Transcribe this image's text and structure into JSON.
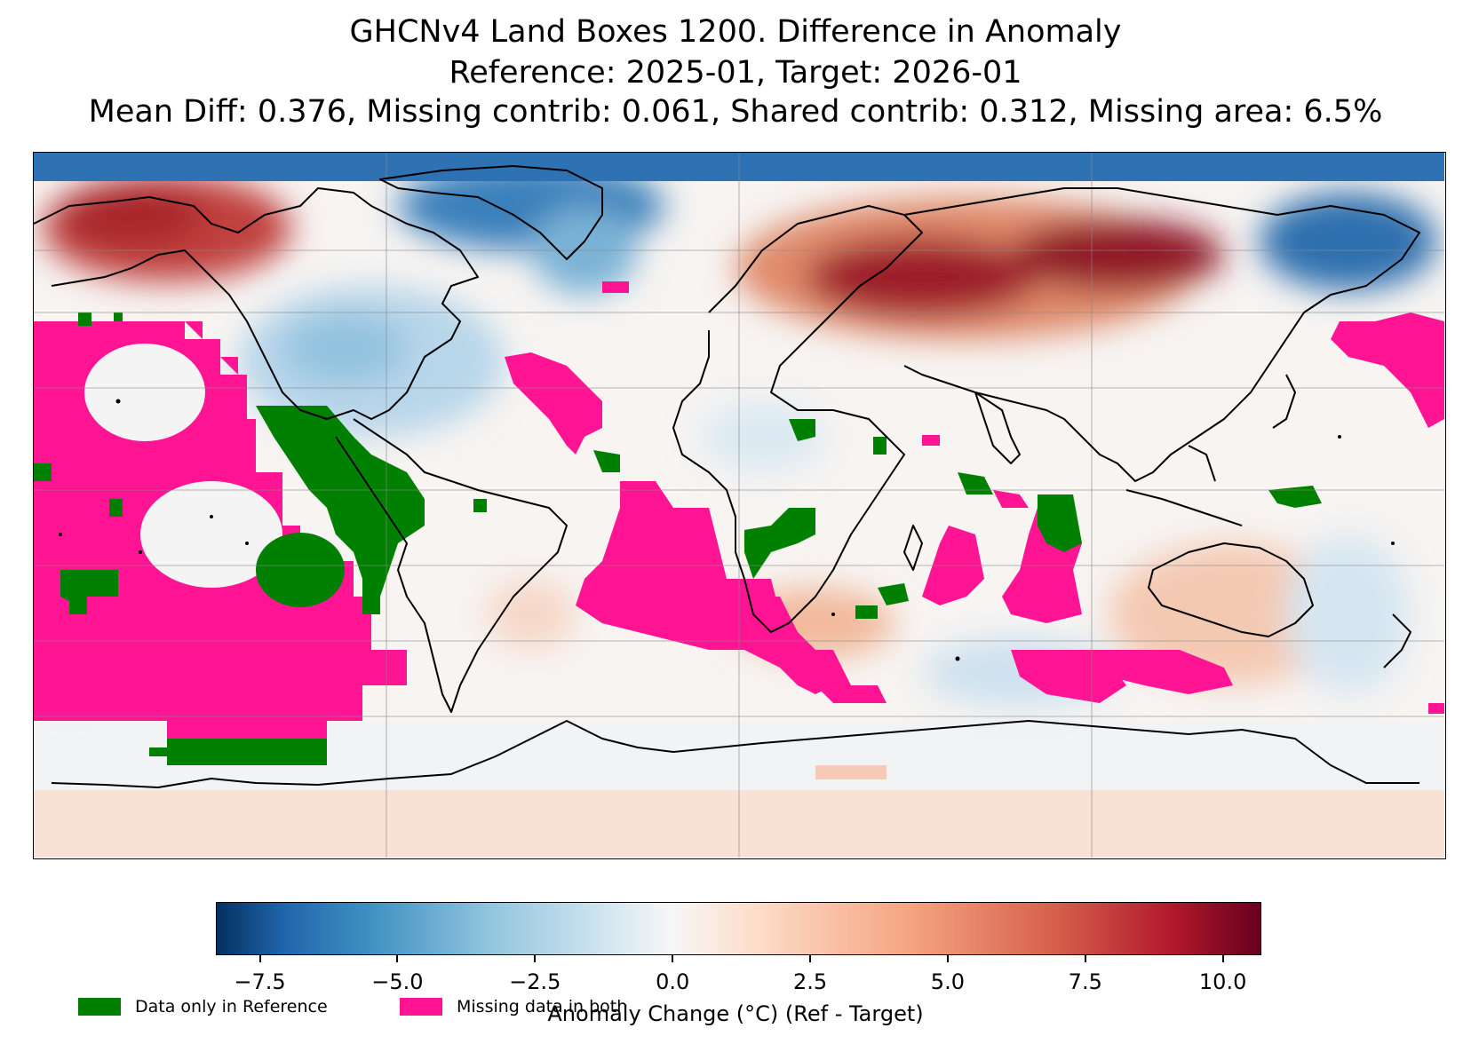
{
  "title": {
    "line1": "GHCNv4 Land Boxes 1200. Difference in Anomaly",
    "line2": "Reference: 2025-01, Target: 2026-01",
    "line3": "Mean Diff: 0.376, Missing contrib: 0.061, Shared contrib: 0.312, Missing area: 6.5%"
  },
  "colorbar": {
    "label": "Anomaly Change (°C) (Ref - Target)",
    "vmin": -8.3,
    "vmax": 10.7,
    "ticks": [
      "−7.5",
      "−5.0",
      "−2.5",
      "0.0",
      "2.5",
      "5.0",
      "7.5",
      "10.0"
    ],
    "tick_values": [
      -7.5,
      -5.0,
      -2.5,
      0.0,
      2.5,
      5.0,
      7.5,
      10.0
    ],
    "colormap": "RdBu_r"
  },
  "legend": [
    {
      "label": "Data only in Reference",
      "color": "#008000"
    },
    {
      "label": "Missing data in both",
      "color": "#ff1493"
    }
  ],
  "map": {
    "projection": "equirectangular",
    "colors": {
      "ref_only": "#008000",
      "missing_both": "#ff1493",
      "coastline": "#000000",
      "gridline": "#888888"
    }
  }
}
